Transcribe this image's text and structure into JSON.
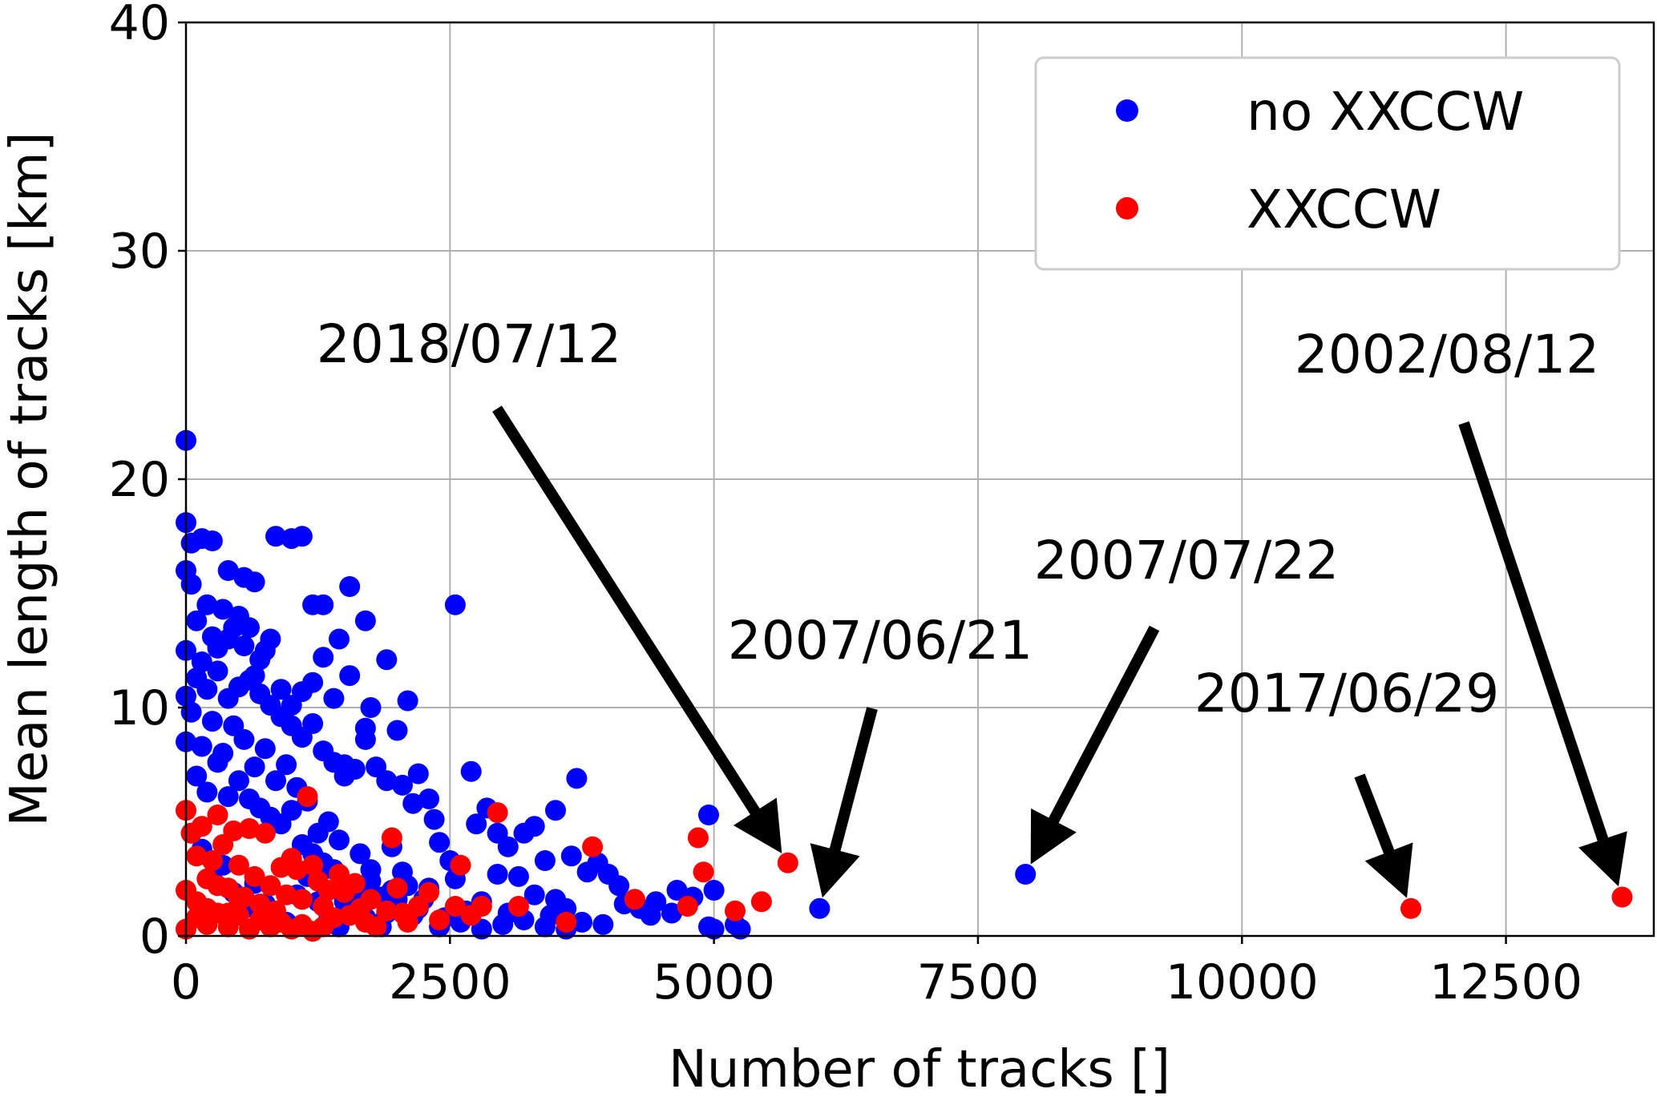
{
  "chart_data": {
    "type": "scatter",
    "xlabel": "Number of tracks []",
    "ylabel": "Mean length of tracks [km]",
    "xlim": [
      0,
      13900
    ],
    "ylim": [
      0,
      40
    ],
    "x_ticks": [
      0,
      2500,
      5000,
      7500,
      10000,
      12500
    ],
    "y_ticks": [
      0,
      10,
      20,
      30,
      40
    ],
    "x_tick_labels": [
      "0",
      "2500",
      "5000",
      "7500",
      "10000",
      "12500"
    ],
    "y_tick_labels": [
      "0",
      "10",
      "20",
      "30",
      "40"
    ],
    "grid": true,
    "legend_position": "top-right",
    "series": [
      {
        "name": "no XXCCW",
        "color": "#0000ff",
        "points": [
          [
            0,
            21.7
          ],
          [
            0,
            18.1
          ],
          [
            50,
            17.2
          ],
          [
            150,
            17.4
          ],
          [
            250,
            17.3
          ],
          [
            400,
            16.0
          ],
          [
            550,
            15.7
          ],
          [
            650,
            15.5
          ],
          [
            850,
            17.5
          ],
          [
            1000,
            17.4
          ],
          [
            1100,
            17.5
          ],
          [
            1200,
            14.5
          ],
          [
            1300,
            14.5
          ],
          [
            1450,
            13.0
          ],
          [
            1550,
            11.4
          ],
          [
            1550,
            15.3
          ],
          [
            1700,
            13.8
          ],
          [
            1900,
            12.1
          ],
          [
            2100,
            10.3
          ],
          [
            2000,
            9.0
          ],
          [
            2550,
            14.5
          ],
          [
            1750,
            10.0
          ],
          [
            1700,
            9.1
          ],
          [
            1700,
            8.6
          ],
          [
            1500,
            7.5
          ],
          [
            1400,
            10.4
          ],
          [
            1300,
            12.2
          ],
          [
            1200,
            11.1
          ],
          [
            1100,
            10.7
          ],
          [
            1000,
            10.1
          ],
          [
            900,
            9.6
          ],
          [
            800,
            13.0
          ],
          [
            750,
            12.5
          ],
          [
            700,
            12.1
          ],
          [
            650,
            11.4
          ],
          [
            600,
            13.5
          ],
          [
            550,
            12.7
          ],
          [
            500,
            14.0
          ],
          [
            450,
            13.5
          ],
          [
            400,
            13.0
          ],
          [
            350,
            14.3
          ],
          [
            300,
            12.6
          ],
          [
            250,
            13.1
          ],
          [
            200,
            14.5
          ],
          [
            150,
            12.0
          ],
          [
            100,
            13.8
          ],
          [
            50,
            15.4
          ],
          [
            0,
            16.0
          ],
          [
            100,
            11.3
          ],
          [
            200,
            10.8
          ],
          [
            300,
            11.6
          ],
          [
            400,
            10.4
          ],
          [
            500,
            10.9
          ],
          [
            600,
            11.2
          ],
          [
            700,
            10.6
          ],
          [
            800,
            10.1
          ],
          [
            900,
            10.8
          ],
          [
            1000,
            9.2
          ],
          [
            1100,
            8.7
          ],
          [
            1200,
            9.3
          ],
          [
            1300,
            8.1
          ],
          [
            1400,
            7.6
          ],
          [
            1500,
            7.0
          ],
          [
            1600,
            7.3
          ],
          [
            1800,
            7.4
          ],
          [
            1900,
            6.8
          ],
          [
            2050,
            6.6
          ],
          [
            2200,
            7.1
          ],
          [
            2300,
            6.0
          ],
          [
            2150,
            5.8
          ],
          [
            2400,
            4.1
          ],
          [
            2350,
            5.1
          ],
          [
            2700,
            7.2
          ],
          [
            2850,
            5.6
          ],
          [
            2750,
            4.9
          ],
          [
            2950,
            4.5
          ],
          [
            3050,
            3.9
          ],
          [
            3200,
            4.5
          ],
          [
            3300,
            4.8
          ],
          [
            3400,
            3.3
          ],
          [
            3500,
            5.5
          ],
          [
            3700,
            6.9
          ],
          [
            3650,
            3.5
          ],
          [
            3800,
            2.8
          ],
          [
            3900,
            3.2
          ],
          [
            4000,
            2.7
          ],
          [
            4100,
            2.2
          ],
          [
            4150,
            1.4
          ],
          [
            4250,
            1.6
          ],
          [
            4450,
            1.5
          ],
          [
            4650,
            2.0
          ],
          [
            4800,
            1.7
          ],
          [
            4950,
            5.3
          ],
          [
            5000,
            2.0
          ],
          [
            4950,
            0.4
          ],
          [
            5000,
            0.3
          ],
          [
            5200,
            0.5
          ],
          [
            5250,
            0.3
          ],
          [
            4600,
            1.0
          ],
          [
            4400,
            0.9
          ],
          [
            4300,
            1.2
          ],
          [
            3950,
            0.5
          ],
          [
            3750,
            0.6
          ],
          [
            3600,
            1.2
          ],
          [
            3450,
            0.9
          ],
          [
            3300,
            1.8
          ],
          [
            3150,
            2.6
          ],
          [
            3050,
            1.0
          ],
          [
            2950,
            2.7
          ],
          [
            2800,
            1.5
          ],
          [
            2650,
            1.1
          ],
          [
            2550,
            2.5
          ],
          [
            2500,
            3.3
          ],
          [
            2450,
            0.8
          ],
          [
            2300,
            2.1
          ],
          [
            2250,
            1.6
          ],
          [
            2150,
            0.9
          ],
          [
            2050,
            2.8
          ],
          [
            1950,
            3.9
          ],
          [
            1850,
            1.7
          ],
          [
            1750,
            2.9
          ],
          [
            1650,
            3.6
          ],
          [
            1550,
            2.2
          ],
          [
            1450,
            4.2
          ],
          [
            1350,
            5.0
          ],
          [
            1250,
            4.5
          ],
          [
            1150,
            5.9
          ],
          [
            1050,
            6.5
          ],
          [
            950,
            7.5
          ],
          [
            850,
            6.8
          ],
          [
            750,
            8.2
          ],
          [
            650,
            7.4
          ],
          [
            550,
            8.6
          ],
          [
            450,
            9.2
          ],
          [
            350,
            8.0
          ],
          [
            250,
            9.4
          ],
          [
            150,
            8.3
          ],
          [
            50,
            9.8
          ],
          [
            0,
            12.5
          ],
          [
            0,
            10.5
          ],
          [
            0,
            8.5
          ],
          [
            100,
            7.0
          ],
          [
            200,
            6.3
          ],
          [
            300,
            7.6
          ],
          [
            400,
            6.1
          ],
          [
            500,
            6.8
          ],
          [
            600,
            6.0
          ],
          [
            700,
            5.6
          ],
          [
            800,
            5.2
          ],
          [
            900,
            4.9
          ],
          [
            1000,
            5.5
          ],
          [
            1100,
            4.0
          ],
          [
            1200,
            3.6
          ],
          [
            1300,
            3.2
          ],
          [
            1400,
            2.9
          ],
          [
            1500,
            1.5
          ],
          [
            1600,
            1.2
          ],
          [
            1700,
            0.8
          ],
          [
            1800,
            0.5
          ],
          [
            1900,
            1.0
          ],
          [
            2000,
            1.6
          ],
          [
            2100,
            2.2
          ],
          [
            2200,
            1.2
          ],
          [
            2400,
            0.4
          ],
          [
            2600,
            0.6
          ],
          [
            2800,
            0.3
          ],
          [
            3000,
            0.5
          ],
          [
            3200,
            0.7
          ],
          [
            3400,
            0.4
          ],
          [
            3500,
            1.6
          ],
          [
            3600,
            0.3
          ],
          [
            50,
            4.5
          ],
          [
            150,
            3.8
          ],
          [
            250,
            2.5
          ],
          [
            350,
            3.1
          ],
          [
            450,
            1.9
          ],
          [
            550,
            1.2
          ],
          [
            650,
            2.3
          ],
          [
            750,
            1.4
          ],
          [
            850,
            0.9
          ],
          [
            950,
            0.6
          ],
          [
            1050,
            1.8
          ],
          [
            1150,
            2.6
          ],
          [
            1250,
            1.5
          ],
          [
            1350,
            0.7
          ],
          [
            1450,
            0.4
          ],
          [
            1550,
            0.9
          ],
          [
            1650,
            1.8
          ],
          [
            1750,
            2.4
          ],
          [
            1850,
            0.4
          ],
          [
            1950,
            2.0
          ],
          [
            6000,
            1.2
          ],
          [
            7950,
            2.7
          ]
        ]
      },
      {
        "name": "XXCCW",
        "color": "#ff0000",
        "points": [
          [
            0,
            5.5
          ],
          [
            50,
            4.5
          ],
          [
            100,
            3.5
          ],
          [
            150,
            4.8
          ],
          [
            200,
            2.5
          ],
          [
            250,
            3.3
          ],
          [
            300,
            5.3
          ],
          [
            350,
            4.0
          ],
          [
            400,
            2.1
          ],
          [
            450,
            4.6
          ],
          [
            500,
            3.1
          ],
          [
            550,
            1.7
          ],
          [
            600,
            4.7
          ],
          [
            650,
            2.6
          ],
          [
            700,
            1.4
          ],
          [
            750,
            4.5
          ],
          [
            800,
            2.2
          ],
          [
            850,
            1.1
          ],
          [
            900,
            3.0
          ],
          [
            950,
            1.8
          ],
          [
            1000,
            3.4
          ],
          [
            1050,
            2.9
          ],
          [
            1100,
            1.6
          ],
          [
            1150,
            6.1
          ],
          [
            1200,
            3.1
          ],
          [
            1250,
            2.4
          ],
          [
            1300,
            1.3
          ],
          [
            1350,
            2.0
          ],
          [
            1400,
            0.8
          ],
          [
            1450,
            2.7
          ],
          [
            1500,
            1.9
          ],
          [
            1550,
            0.9
          ],
          [
            1600,
            2.3
          ],
          [
            1650,
            1.2
          ],
          [
            1700,
            0.6
          ],
          [
            1750,
            1.6
          ],
          [
            1800,
            0.4
          ],
          [
            1900,
            1.1
          ],
          [
            1950,
            4.3
          ],
          [
            2000,
            2.1
          ],
          [
            2050,
            1.0
          ],
          [
            2100,
            0.6
          ],
          [
            2200,
            1.3
          ],
          [
            2300,
            1.9
          ],
          [
            2400,
            0.7
          ],
          [
            2550,
            1.3
          ],
          [
            2600,
            3.1
          ],
          [
            2700,
            0.9
          ],
          [
            2800,
            1.3
          ],
          [
            2950,
            5.4
          ],
          [
            3150,
            1.3
          ],
          [
            3600,
            0.6
          ],
          [
            3850,
            3.9
          ],
          [
            4250,
            1.6
          ],
          [
            4750,
            1.3
          ],
          [
            4850,
            4.3
          ],
          [
            4900,
            2.8
          ],
          [
            5200,
            1.1
          ],
          [
            5450,
            1.5
          ],
          [
            5700,
            3.2
          ],
          [
            0,
            0.3
          ],
          [
            100,
            0.8
          ],
          [
            200,
            0.5
          ],
          [
            300,
            1.0
          ],
          [
            400,
            0.4
          ],
          [
            500,
            0.9
          ],
          [
            600,
            0.3
          ],
          [
            700,
            0.7
          ],
          [
            800,
            0.4
          ],
          [
            900,
            0.6
          ],
          [
            1000,
            0.3
          ],
          [
            1100,
            0.5
          ],
          [
            1200,
            0.2
          ],
          [
            1300,
            0.4
          ],
          [
            0,
            2.0
          ],
          [
            100,
            1.5
          ],
          [
            200,
            1.2
          ],
          [
            300,
            2.2
          ],
          [
            400,
            1.0
          ],
          [
            500,
            1.6
          ],
          [
            11600,
            1.2
          ],
          [
            13600,
            1.7
          ]
        ]
      }
    ],
    "annotations": [
      {
        "text": "2018/07/12",
        "target": [
          5700,
          3.2
        ]
      },
      {
        "text": "2007/06/21",
        "target": [
          6000,
          1.2
        ]
      },
      {
        "text": "2007/07/22",
        "target": [
          7950,
          2.7
        ]
      },
      {
        "text": "2017/06/29",
        "target": [
          11600,
          1.2
        ]
      },
      {
        "text": "2002/08/12",
        "target": [
          13600,
          1.7
        ]
      }
    ]
  }
}
